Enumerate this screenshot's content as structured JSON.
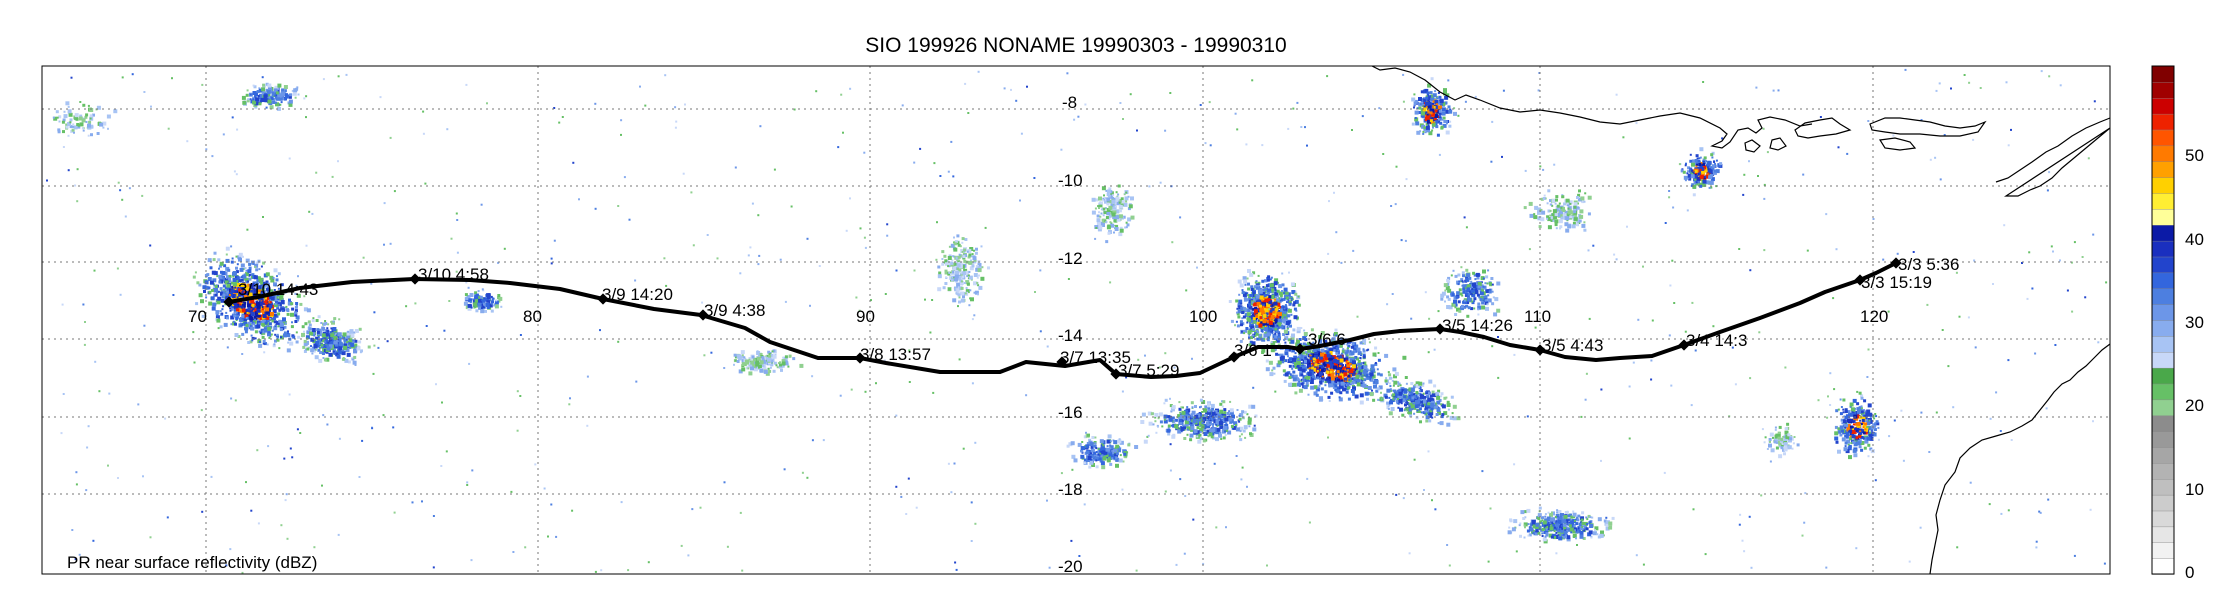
{
  "title": "SIO 199926 NONAME 19990303 - 19990310",
  "footer_label": "PR near surface reflectivity (dBZ)",
  "lon_labels": [
    "70",
    "80",
    "90",
    "100",
    "110",
    "120"
  ],
  "lat_labels": [
    "-8",
    "-10",
    "-12",
    "-14",
    "-16",
    "-18",
    "-20"
  ],
  "track_labels": [
    "3/10 14:43",
    "3/10 4:58",
    "3/9 14:20",
    "3/9 4:38",
    "3/8 13:57",
    "3/7 13:35",
    "3/7 5:29",
    "3/6 1",
    "3/6 6",
    "3/5 14:26",
    "3/5 4:43",
    "3/4 14:3",
    "3/3 15:19",
    "3/3 5:36"
  ],
  "colorbar": {
    "ticks": [
      "0",
      "10",
      "20",
      "30",
      "40",
      "50"
    ],
    "colors": [
      "#ffffff",
      "#f2f2f2",
      "#e6e6e6",
      "#d9d9d9",
      "#cccccc",
      "#bfbfbf",
      "#b3b3b3",
      "#a6a6a6",
      "#999999",
      "#8c8c8c",
      "#90d090",
      "#66c066",
      "#4aa84a",
      "#c8d8f8",
      "#a8c4f4",
      "#88acee",
      "#6c96e8",
      "#4d7fe0",
      "#3366dd",
      "#2244cc",
      "#1a2fbf",
      "#0b1aa6",
      "#ffff99",
      "#ffee33",
      "#ffd000",
      "#ffa000",
      "#ff7a00",
      "#ff5500",
      "#ee2200",
      "#cc0000",
      "#a00000",
      "#800000"
    ]
  },
  "colors": {
    "track": "#000000",
    "coast": "#000000",
    "grid": "#777777"
  }
}
